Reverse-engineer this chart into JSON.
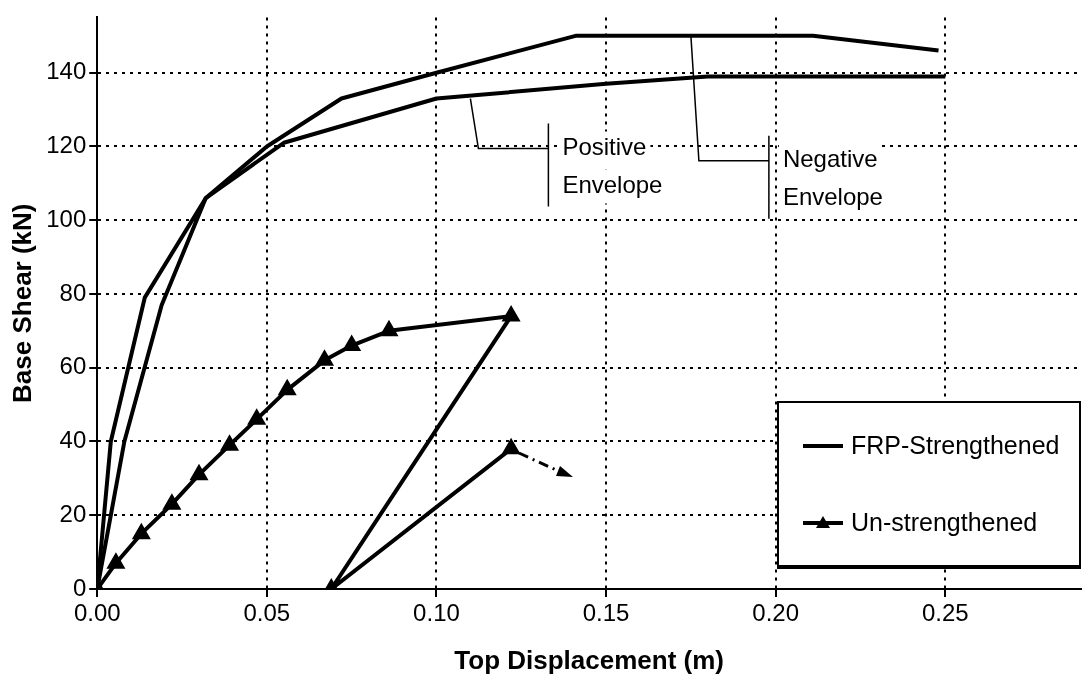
{
  "chart_data": {
    "type": "line",
    "xlabel": "Top Displacement (m)",
    "ylabel": "Base Shear (kN)",
    "xlim": [
      0,
      0.29
    ],
    "xticks": [
      {
        "value": 0,
        "label": "0.00"
      },
      {
        "value": 0.05,
        "label": "0.05"
      },
      {
        "value": 0.1,
        "label": "0.10"
      },
      {
        "value": 0.15,
        "label": "0.15"
      },
      {
        "value": 0.2,
        "label": "0.20"
      },
      {
        "value": 0.25,
        "label": "0.25"
      }
    ],
    "ylim": [
      0,
      155
    ],
    "yticks": [
      0,
      20,
      40,
      60,
      80,
      100,
      120,
      140
    ],
    "grid": true,
    "legend": "bottom right",
    "line_style": "solid",
    "series": [
      {
        "name": "FRP-Strengthened",
        "color": "#000000",
        "marker": "none",
        "x": [
          0,
          0.008,
          0.019,
          0.032,
          0.055,
          0.1,
          0.15,
          0.18,
          0.25
        ],
        "values": [
          0,
          40,
          77,
          106,
          121,
          133,
          137,
          139,
          139
        ]
      },
      {
        "color": "#000000",
        "marker": "none",
        "x": [
          0,
          0.004,
          0.014,
          0.032,
          0.05,
          0.072,
          0.1,
          0.141,
          0.211,
          0.248
        ],
        "values": [
          0,
          40,
          79,
          106,
          120,
          133,
          140,
          150,
          150,
          146
        ]
      },
      {
        "name": "Un-strengthened",
        "color": "#000000",
        "marker": "triangle",
        "x": [
          0,
          0.0055,
          0.013,
          0.022,
          0.03,
          0.039,
          0.047,
          0.056,
          0.067,
          0.075,
          0.086,
          0.122,
          0.069,
          0.122
        ],
        "values": [
          0,
          7,
          15,
          23,
          31,
          39,
          46,
          54,
          62,
          66,
          70,
          74,
          0,
          38
        ]
      }
    ],
    "annotations": [
      {
        "text": "Positive Envelope",
        "x": 0.11,
        "y": 133
      },
      {
        "text": "Negative Envelope",
        "x": 0.175,
        "y": 150
      }
    ]
  }
}
